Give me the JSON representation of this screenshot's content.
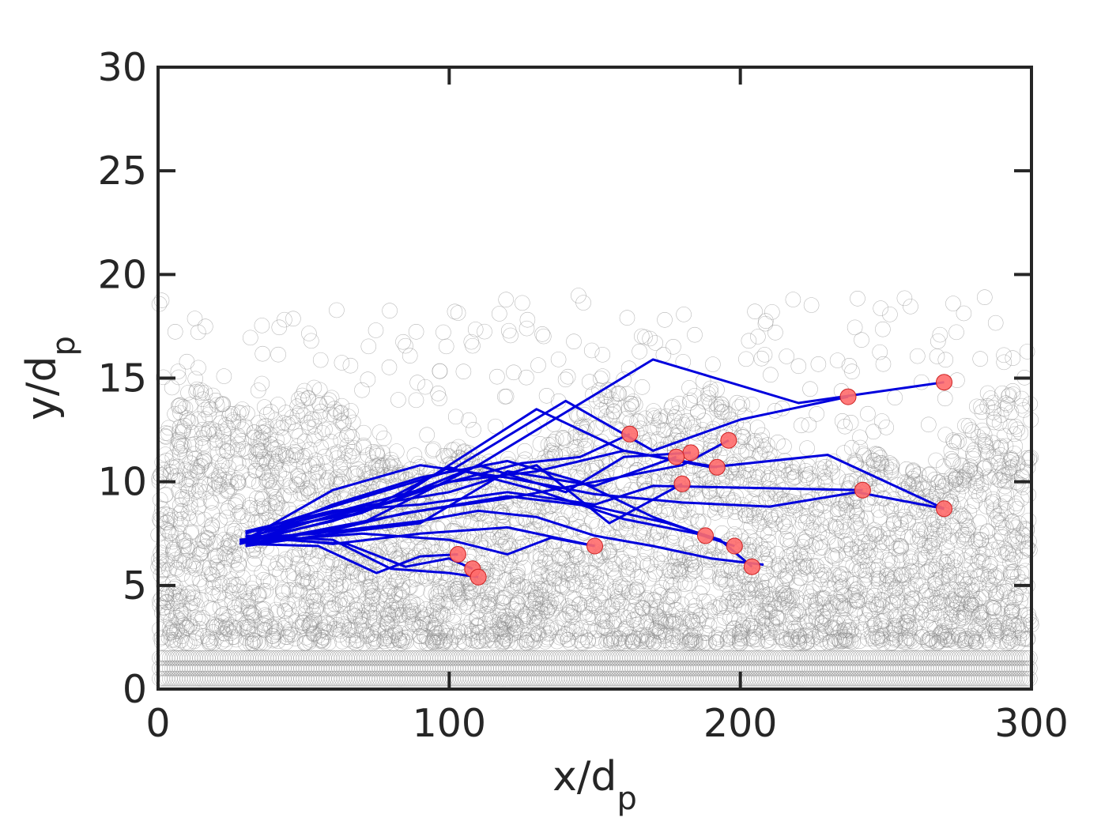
{
  "chart_data": {
    "type": "scatter",
    "title": "",
    "xlabel": "x/d",
    "xlabel_sub": "p",
    "ylabel": "y/d",
    "ylabel_sub": "p",
    "xlim": [
      0,
      300
    ],
    "ylim": [
      0,
      30
    ],
    "xticks": [
      0,
      100,
      200,
      300
    ],
    "yticks": [
      0,
      5,
      10,
      15,
      20,
      25,
      30
    ],
    "grid": false,
    "legend": "none",
    "colors": {
      "trajectory": "#0000dd",
      "endpoint_fill": "#ff6b6b",
      "endpoint_edge": "#cc2222",
      "bed_particles": "#8c8c8c",
      "axes": "#262626"
    },
    "bed_particles": {
      "marker": "hollow-circle",
      "fixed_layers_y": [
        0.5,
        1.0,
        1.5
      ],
      "packed_bed_top_y": 10,
      "sparse_region_top_y": 19
    },
    "trajectories": [
      {
        "x": [
          30,
          60,
          90,
          120,
          150,
          180,
          210,
          240,
          270
        ],
        "y": [
          7.2,
          9.6,
          10.8,
          10.2,
          9.4,
          9.0,
          8.8,
          9.5,
          8.7
        ]
      },
      {
        "x": [
          28,
          70,
          110,
          170,
          220,
          270
        ],
        "y": [
          7.0,
          8.5,
          10.8,
          15.9,
          13.8,
          14.8
        ]
      },
      {
        "x": [
          32,
          80,
          130,
          160,
          190,
          230,
          270
        ],
        "y": [
          7.4,
          9.0,
          13.5,
          11.5,
          10.7,
          11.3,
          8.7
        ]
      },
      {
        "x": [
          30,
          60,
          100,
          140,
          170,
          200,
          237
        ],
        "y": [
          7.5,
          8.8,
          10.5,
          13.9,
          11.5,
          13.0,
          14.1
        ]
      },
      {
        "x": [
          34,
          60,
          95,
          125,
          145,
          162
        ],
        "y": [
          7.6,
          8.5,
          9.8,
          10.9,
          11.2,
          12.3
        ]
      },
      {
        "x": [
          30,
          55,
          85,
          120,
          150,
          180,
          196
        ],
        "y": [
          7.3,
          7.5,
          8.5,
          9.2,
          10.0,
          10.8,
          12.0
        ]
      },
      {
        "x": [
          28,
          60,
          100,
          130,
          160,
          192
        ],
        "y": [
          7.1,
          8.1,
          10.0,
          10.5,
          11.5,
          10.7
        ]
      },
      {
        "x": [
          32,
          70,
          110,
          140,
          160,
          183
        ],
        "y": [
          7.0,
          8.0,
          10.8,
          9.5,
          11.2,
          11.4
        ]
      },
      {
        "x": [
          30,
          60,
          90,
          120,
          150,
          178
        ],
        "y": [
          6.9,
          7.5,
          8.0,
          10.5,
          9.8,
          11.2
        ]
      },
      {
        "x": [
          34,
          70,
          100,
          130,
          155,
          180
        ],
        "y": [
          7.3,
          8.8,
          9.5,
          10.8,
          8.0,
          9.9
        ]
      },
      {
        "x": [
          30,
          60,
          90,
          120,
          145,
          170,
          188
        ],
        "y": [
          7.2,
          8.9,
          10.2,
          11.0,
          10.0,
          8.3,
          7.4
        ]
      },
      {
        "x": [
          32,
          70,
          100,
          130,
          160,
          185,
          198
        ],
        "y": [
          7.6,
          8.5,
          10.7,
          9.6,
          8.2,
          7.5,
          6.9
        ]
      },
      {
        "x": [
          30,
          60,
          90,
          120,
          150,
          175,
          193,
          204
        ],
        "y": [
          7.0,
          7.8,
          8.6,
          9.3,
          8.8,
          8.0,
          7.2,
          5.9
        ]
      },
      {
        "x": [
          34,
          60,
          90,
          120,
          150
        ],
        "y": [
          7.4,
          7.0,
          7.5,
          7.8,
          6.9
        ]
      },
      {
        "x": [
          30,
          55,
          75,
          90,
          103
        ],
        "y": [
          7.0,
          6.9,
          5.6,
          6.4,
          6.5
        ]
      },
      {
        "x": [
          32,
          65,
          85,
          100,
          108
        ],
        "y": [
          7.3,
          7.0,
          5.9,
          6.3,
          5.8
        ]
      },
      {
        "x": [
          28,
          60,
          90,
          110,
          130,
          150,
          170,
          190,
          208
        ],
        "y": [
          7.2,
          7.6,
          8.1,
          8.6,
          8.3,
          7.4,
          6.9,
          6.3,
          6.0
        ]
      },
      {
        "x": [
          30,
          60,
          80,
          100,
          110
        ],
        "y": [
          7.4,
          7.2,
          5.8,
          5.6,
          5.4
        ]
      },
      {
        "x": [
          32,
          70,
          100,
          120,
          135,
          150
        ],
        "y": [
          7.1,
          7.5,
          7.2,
          6.5,
          7.3,
          6.9
        ]
      },
      {
        "x": [
          30,
          60,
          90,
          120,
          150,
          170,
          242
        ],
        "y": [
          7.6,
          8.6,
          8.9,
          9.5,
          8.9,
          9.8,
          9.6
        ]
      }
    ],
    "endpoints": [
      {
        "x": 270,
        "y": 14.8
      },
      {
        "x": 237,
        "y": 14.1
      },
      {
        "x": 162,
        "y": 12.3
      },
      {
        "x": 196,
        "y": 12.0
      },
      {
        "x": 183,
        "y": 11.4
      },
      {
        "x": 178,
        "y": 11.2
      },
      {
        "x": 192,
        "y": 10.7
      },
      {
        "x": 180,
        "y": 9.9
      },
      {
        "x": 242,
        "y": 9.6
      },
      {
        "x": 270,
        "y": 8.7
      },
      {
        "x": 188,
        "y": 7.4
      },
      {
        "x": 150,
        "y": 6.9
      },
      {
        "x": 198,
        "y": 6.9
      },
      {
        "x": 103,
        "y": 6.5
      },
      {
        "x": 204,
        "y": 5.9
      },
      {
        "x": 108,
        "y": 5.8
      },
      {
        "x": 110,
        "y": 5.4
      }
    ]
  }
}
